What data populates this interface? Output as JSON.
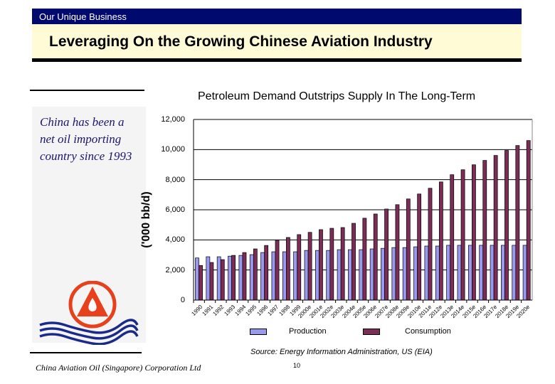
{
  "header": {
    "section": "Our Unique Business",
    "title": "Leveraging On the Growing Chinese Aviation Industry"
  },
  "left_panel": {
    "note": "China has been a net oil importing country since 1993",
    "logo": "china-aviation-oil-logo"
  },
  "chart_data": {
    "type": "bar",
    "title": "Petroleum Demand Outstrips Supply In The Long-Term",
    "xlabel": "",
    "ylabel": "('000 bb/d)",
    "ylim": [
      0,
      12000
    ],
    "yticks": [
      "0",
      "2,000",
      "4,000",
      "6,000",
      "8,000",
      "10,000",
      "12,000"
    ],
    "grid": true,
    "legend": "bottom",
    "categories": [
      "1990",
      "1991",
      "1992",
      "1993",
      "1994",
      "1995",
      "1996",
      "1997",
      "1998",
      "1999",
      "2000e",
      "2001e",
      "2002e",
      "2003e",
      "2004e",
      "2005e",
      "2006e",
      "2007e",
      "2008e",
      "2009e",
      "2010e",
      "2011e",
      "2012e",
      "2013e",
      "2014e",
      "2015e",
      "2016e",
      "2017e",
      "2018e",
      "2019e",
      "2020e"
    ],
    "series": [
      {
        "name": "Production",
        "color": "#9999ee",
        "values": [
          2800,
          2880,
          2880,
          2920,
          2970,
          3020,
          3160,
          3210,
          3210,
          3210,
          3300,
          3300,
          3300,
          3350,
          3350,
          3350,
          3400,
          3440,
          3490,
          3490,
          3540,
          3590,
          3590,
          3640,
          3640,
          3640,
          3640,
          3640,
          3640,
          3640,
          3640
        ]
      },
      {
        "name": "Consumption",
        "color": "#7b2d55",
        "values": [
          2300,
          2500,
          2690,
          2970,
          3160,
          3400,
          3630,
          3980,
          4160,
          4350,
          4500,
          4680,
          4770,
          4820,
          5100,
          5440,
          5720,
          6050,
          6340,
          6720,
          7050,
          7430,
          7850,
          8330,
          8660,
          8990,
          9280,
          9610,
          9940,
          10270,
          10600
        ]
      }
    ]
  },
  "source": "Source: Energy Information Administration, US (EIA)",
  "footer": {
    "company": "China Aviation Oil (Singapore) Corporation Ltd",
    "page": "10"
  }
}
